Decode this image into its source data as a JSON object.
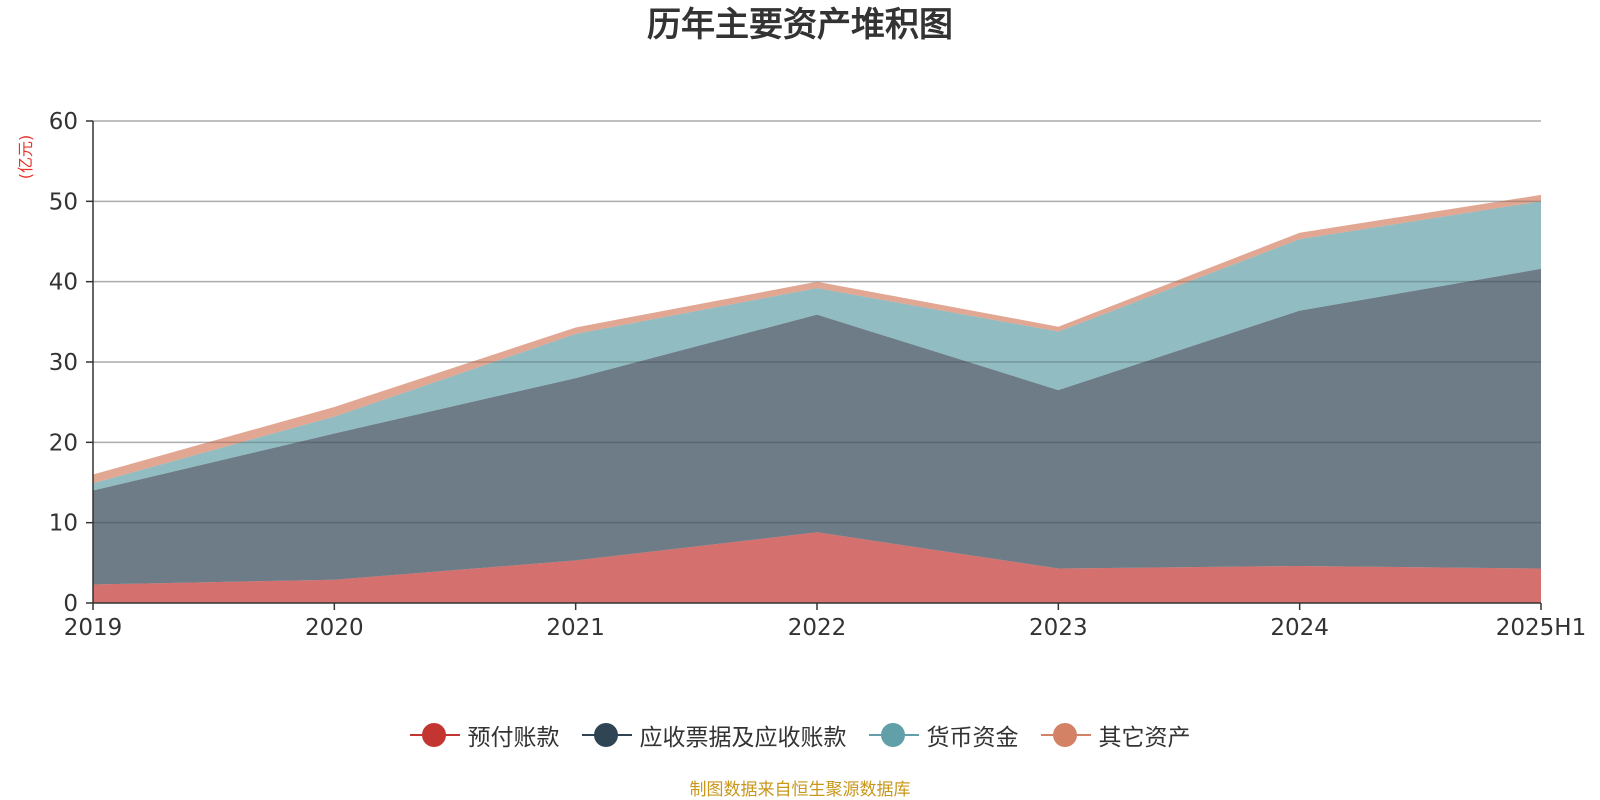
{
  "title": "历年主要资产堆积图",
  "unit": "(亿元)",
  "source": "制图数据来自恒生聚源数据库",
  "chart_data": {
    "type": "area",
    "stacked": true,
    "title": "历年主要资产堆积图",
    "ylabel": "(亿元)",
    "xlabel": "",
    "categories": [
      "2019",
      "2020",
      "2021",
      "2022",
      "2023",
      "2024",
      "2025H1"
    ],
    "ylim": [
      0,
      60
    ],
    "yticks": [
      0,
      10,
      20,
      30,
      40,
      50,
      60
    ],
    "grid": true,
    "legend_position": "bottom",
    "series": [
      {
        "name": "预付账款",
        "color": "#c23531",
        "values": [
          2.3,
          2.9,
          5.3,
          8.8,
          4.3,
          4.6,
          4.3
        ]
      },
      {
        "name": "应收票据及应收账款",
        "color": "#2f4554",
        "values": [
          11.7,
          18.2,
          22.7,
          27.1,
          22.2,
          31.8,
          37.3
        ]
      },
      {
        "name": "货币资金",
        "color": "#61a0a8",
        "values": [
          0.9,
          2.1,
          5.5,
          3.3,
          7.3,
          8.9,
          8.4
        ]
      },
      {
        "name": "其它资产",
        "color": "#d48265",
        "values": [
          1.1,
          1.2,
          0.8,
          0.8,
          0.6,
          0.8,
          0.8
        ]
      }
    ]
  }
}
